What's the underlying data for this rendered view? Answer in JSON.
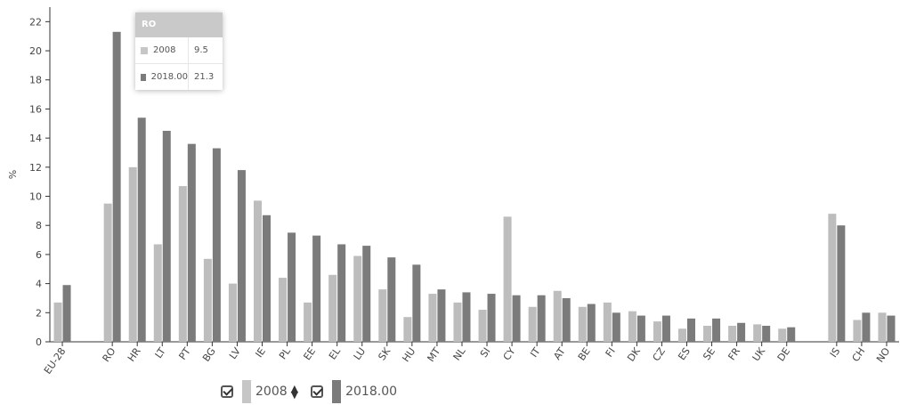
{
  "chart_data": {
    "type": "bar",
    "ylabel": "%",
    "ylim": [
      0,
      23
    ],
    "yticks": [
      0,
      2,
      4,
      6,
      8,
      10,
      12,
      14,
      16,
      18,
      20,
      22
    ],
    "categories": [
      "EU-28",
      "",
      "RO",
      "HR",
      "LT",
      "PT",
      "BG",
      "LV",
      "IE",
      "PL",
      "EE",
      "EL",
      "LU",
      "SK",
      "HU",
      "MT",
      "NL",
      "SI",
      "CY",
      "IT",
      "AT",
      "BE",
      "FI",
      "DK",
      "CZ",
      "ES",
      "SE",
      "FR",
      "UK",
      "DE",
      "",
      "IS",
      "CH",
      "NO"
    ],
    "series": [
      {
        "name": "2008",
        "color": "#bdbdbd",
        "values": [
          2.7,
          null,
          9.5,
          12.0,
          6.7,
          10.7,
          5.7,
          4.0,
          9.7,
          4.4,
          2.7,
          4.6,
          5.9,
          3.6,
          1.7,
          3.3,
          2.7,
          2.2,
          8.6,
          2.4,
          3.5,
          2.4,
          2.7,
          2.1,
          1.4,
          0.9,
          1.1,
          1.1,
          1.2,
          0.9,
          null,
          8.8,
          1.5,
          2.0
        ]
      },
      {
        "name": "2018.00",
        "color": "#7b7b7b",
        "values": [
          3.9,
          null,
          21.3,
          15.4,
          14.5,
          13.6,
          13.3,
          11.8,
          8.7,
          7.5,
          7.3,
          6.7,
          6.6,
          5.8,
          5.3,
          3.6,
          3.4,
          3.3,
          3.2,
          3.2,
          3.0,
          2.6,
          2.0,
          1.8,
          1.8,
          1.6,
          1.6,
          1.3,
          1.1,
          1.0,
          null,
          8.0,
          2.0,
          1.8
        ]
      }
    ],
    "grid": false,
    "legend_position": "bottom-left"
  },
  "tooltip": {
    "title": "RO",
    "rows": [
      {
        "label": "2008",
        "value": "9.5",
        "color": "#c6c6c6"
      },
      {
        "label": "2018.00",
        "value": "21.3",
        "color": "#7b7b7b"
      }
    ]
  },
  "legend": {
    "items": [
      {
        "label": "2008",
        "color": "#c6c6c6"
      },
      {
        "label": "2018.00",
        "color": "#7b7b7b"
      }
    ],
    "sort_icon": "sort-up-down-icon",
    "check_icon": "checkbox-checked-icon"
  }
}
